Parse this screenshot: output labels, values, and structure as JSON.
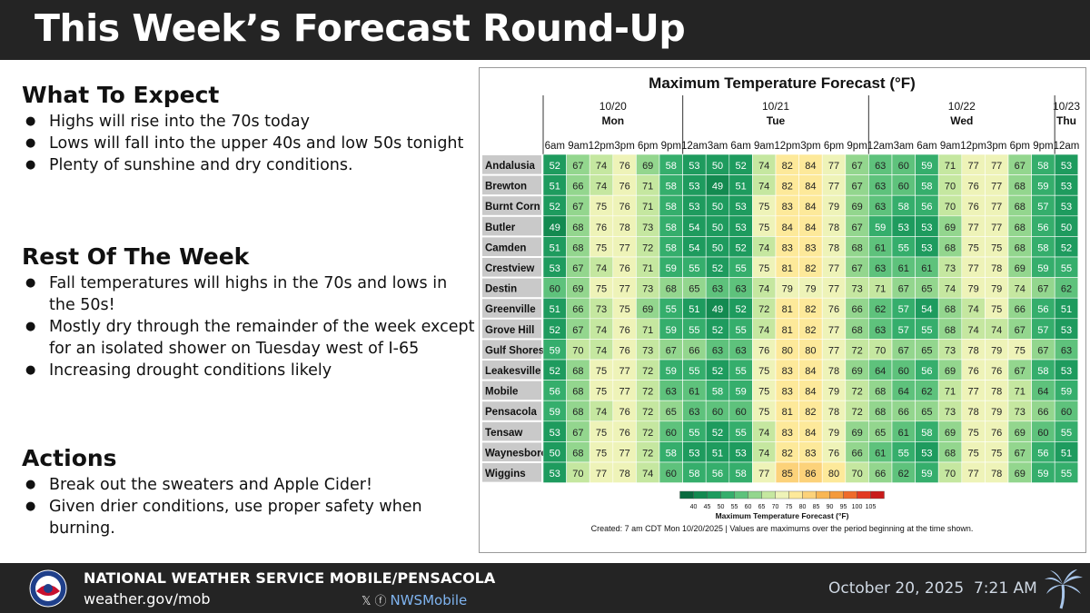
{
  "header": {
    "title": "This Week’s Forecast Round-Up"
  },
  "sections": {
    "expect": {
      "title": "What To Expect",
      "bullets": [
        "Highs will rise into the 70s today",
        "Lows will fall into the upper 40s and low 50s tonight",
        "Plenty of sunshine and dry conditions."
      ]
    },
    "rest": {
      "title": "Rest Of The Week",
      "bullets": [
        "Fall temperatures will highs in the 70s and lows in the 50s!",
        "Mostly dry through the remainder of the week except for an isolated shower on Tuesday west of I-65",
        "Increasing drought conditions likely"
      ]
    },
    "actions": {
      "title": "Actions",
      "bullets": [
        "Break out the sweaters and Apple Cider!",
        "Given drier conditions, use proper safety when burning."
      ]
    }
  },
  "chart_data": {
    "type": "table",
    "title": "Maximum Temperature Forecast (°F)",
    "days": [
      {
        "date": "10/20",
        "dow": "Mon",
        "span": 6
      },
      {
        "date": "10/21",
        "dow": "Tue",
        "span": 8
      },
      {
        "date": "10/22",
        "dow": "Wed",
        "span": 8
      },
      {
        "date": "10/23",
        "dow": "Thu",
        "span": 1
      }
    ],
    "hours": [
      "6am",
      "9am",
      "12pm",
      "3pm",
      "6pm",
      "9pm",
      "12am",
      "3am",
      "6am",
      "9am",
      "12pm",
      "3pm",
      "6pm",
      "9pm",
      "12am",
      "3am",
      "6am",
      "9am",
      "12pm",
      "3pm",
      "6pm",
      "9pm",
      "12am"
    ],
    "rows": [
      {
        "name": "Andalusia",
        "values": [
          52,
          67,
          74,
          76,
          69,
          58,
          53,
          50,
          52,
          74,
          82,
          84,
          77,
          67,
          63,
          60,
          59,
          71,
          77,
          77,
          67,
          58,
          53
        ]
      },
      {
        "name": "Brewton",
        "values": [
          51,
          66,
          74,
          76,
          71,
          58,
          53,
          49,
          51,
          74,
          82,
          84,
          77,
          67,
          63,
          60,
          58,
          70,
          76,
          77,
          68,
          59,
          53
        ]
      },
      {
        "name": "Burnt Corn",
        "values": [
          52,
          67,
          75,
          76,
          71,
          58,
          53,
          50,
          53,
          75,
          83,
          84,
          79,
          69,
          63,
          58,
          56,
          70,
          76,
          77,
          68,
          57,
          53
        ]
      },
      {
        "name": "Butler",
        "values": [
          49,
          68,
          76,
          78,
          73,
          58,
          54,
          50,
          53,
          75,
          84,
          84,
          78,
          67,
          59,
          53,
          53,
          69,
          77,
          77,
          68,
          56,
          50
        ]
      },
      {
        "name": "Camden",
        "values": [
          51,
          68,
          75,
          77,
          72,
          58,
          54,
          50,
          52,
          74,
          83,
          83,
          78,
          68,
          61,
          55,
          53,
          68,
          75,
          75,
          68,
          58,
          52
        ]
      },
      {
        "name": "Crestview",
        "values": [
          53,
          67,
          74,
          76,
          71,
          59,
          55,
          52,
          55,
          75,
          81,
          82,
          77,
          67,
          63,
          61,
          61,
          73,
          77,
          78,
          69,
          59,
          55
        ]
      },
      {
        "name": "Destin",
        "values": [
          60,
          69,
          75,
          77,
          73,
          68,
          65,
          63,
          63,
          74,
          79,
          79,
          77,
          73,
          71,
          67,
          65,
          74,
          79,
          79,
          74,
          67,
          62
        ]
      },
      {
        "name": "Greenville",
        "values": [
          51,
          66,
          73,
          75,
          69,
          55,
          51,
          49,
          52,
          72,
          81,
          82,
          76,
          66,
          62,
          57,
          54,
          68,
          74,
          75,
          66,
          56,
          51
        ]
      },
      {
        "name": "Grove Hill",
        "values": [
          52,
          67,
          74,
          76,
          71,
          59,
          55,
          52,
          55,
          74,
          81,
          82,
          77,
          68,
          63,
          57,
          55,
          68,
          74,
          74,
          67,
          57,
          53
        ]
      },
      {
        "name": "Gulf Shores",
        "values": [
          59,
          70,
          74,
          76,
          73,
          67,
          66,
          63,
          63,
          76,
          80,
          80,
          77,
          72,
          70,
          67,
          65,
          73,
          78,
          79,
          75,
          67,
          63
        ]
      },
      {
        "name": "Leakesville",
        "values": [
          52,
          68,
          75,
          77,
          72,
          59,
          55,
          52,
          55,
          75,
          83,
          84,
          78,
          69,
          64,
          60,
          56,
          69,
          76,
          76,
          67,
          58,
          53
        ]
      },
      {
        "name": "Mobile",
        "values": [
          56,
          68,
          75,
          77,
          72,
          63,
          61,
          58,
          59,
          75,
          83,
          84,
          79,
          72,
          68,
          64,
          62,
          71,
          77,
          78,
          71,
          64,
          59
        ]
      },
      {
        "name": "Pensacola",
        "values": [
          59,
          68,
          74,
          76,
          72,
          65,
          63,
          60,
          60,
          75,
          81,
          82,
          78,
          72,
          68,
          66,
          65,
          73,
          78,
          79,
          73,
          66,
          60
        ]
      },
      {
        "name": "Tensaw",
        "values": [
          53,
          67,
          75,
          76,
          72,
          60,
          55,
          52,
          55,
          74,
          83,
          84,
          79,
          69,
          65,
          61,
          58,
          69,
          75,
          76,
          69,
          60,
          55
        ]
      },
      {
        "name": "Waynesboro",
        "values": [
          50,
          68,
          75,
          77,
          72,
          58,
          53,
          51,
          53,
          74,
          82,
          83,
          76,
          66,
          61,
          55,
          53,
          68,
          75,
          75,
          67,
          56,
          51
        ]
      },
      {
        "name": "Wiggins",
        "values": [
          53,
          70,
          77,
          78,
          74,
          60,
          58,
          56,
          58,
          77,
          85,
          86,
          80,
          70,
          66,
          62,
          59,
          70,
          77,
          78,
          69,
          59,
          55
        ]
      }
    ],
    "scale": {
      "title": "Maximum Temperature Forecast (°F)",
      "labels": [
        "40",
        "45",
        "50",
        "55",
        "60",
        "65",
        "70",
        "75",
        "80",
        "85",
        "90",
        "95",
        "100",
        "105"
      ],
      "colors": [
        "#0a6b3f",
        "#138a50",
        "#1e9b5e",
        "#35ae6c",
        "#5ec27c",
        "#93d68e",
        "#c5e7a0",
        "#eef3b8",
        "#fde99a",
        "#fcd27a",
        "#f8b654",
        "#f49a3c",
        "#ef6b2a",
        "#e23a22",
        "#c91b1b"
      ]
    },
    "created_note": "Created: 7 am CDT Mon 10/20/2025  |  Values are maximums over the period beginning at the time shown."
  },
  "footer": {
    "org": "NATIONAL WEATHER SERVICE MOBILE/PENSACOLA",
    "url": "weather.gov/mob",
    "social_icons": [
      "x-icon",
      "facebook-icon"
    ],
    "social_handle": "NWSMobile",
    "date": "October 20, 2025",
    "time": "7:21 AM"
  }
}
